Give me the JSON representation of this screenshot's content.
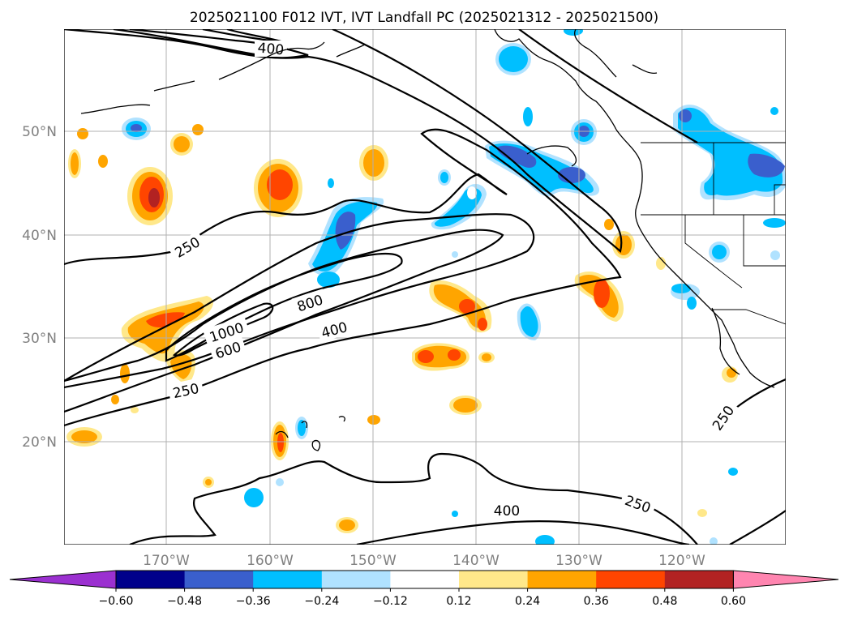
{
  "title": "2025021100 F012 IVT, IVT Landfall PC (2025021312 - 2025021500)",
  "lat_labels": [
    "50°N",
    "40°N",
    "30°N",
    "20°N"
  ],
  "lon_labels": [
    "170°W",
    "160°W",
    "150°W",
    "140°W",
    "130°W",
    "120°W"
  ],
  "contour_labels": [
    "400",
    "250",
    "800",
    "1000",
    "600",
    "400",
    "250",
    "250",
    "400",
    "250"
  ],
  "colorbar": {
    "labels": [
      "−0.60",
      "−0.48",
      "−0.36",
      "−0.24",
      "−0.12",
      "0.12",
      "0.24",
      "0.36",
      "0.48",
      "0.60"
    ],
    "colors": [
      "#9b30d0",
      "#00008b",
      "#3a5fcd",
      "#00bfff",
      "#b0e2ff",
      "#ffffff",
      "#ffe88a",
      "#ffa500",
      "#ff4500",
      "#b22222",
      "#ff85b0"
    ]
  },
  "colors": {
    "pos_light": "#ffe88a",
    "pos_orange": "#ffa500",
    "pos_red": "#ff4500",
    "pos_dark": "#b22222",
    "neg_light": "#b0e2ff",
    "neg_cyan": "#00bfff",
    "neg_blue": "#3a5fcd"
  }
}
